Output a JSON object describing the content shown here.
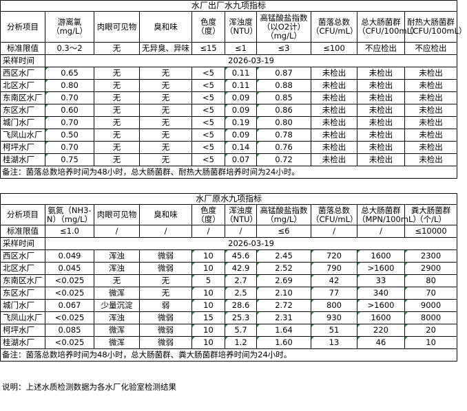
{
  "table1": {
    "title": "水厂出厂水九项指标",
    "headers": [
      "分析项目",
      "游离氯\n（mg/L）",
      "肉眼可见物",
      "臭和味",
      "色度\n（度）",
      "浑浊度\n（NTU）",
      "高锰酸盐指数\n（以O2计）\n（mg/L）",
      "菌落总数\n（CFU/mL）",
      "总大肠菌群\n（CFU/100mL）",
      "耐热大肠菌群\n（CFU/100mL）"
    ],
    "standard": [
      "标准限值",
      "0.3～2",
      "无",
      "无异臭、异味",
      "≤15",
      "≤1",
      "≤3",
      "≤100",
      "不应检出",
      "不应检出"
    ],
    "sample_label": "采样时间",
    "sample_date": "2026-03-19",
    "rows": [
      [
        "西区水厂",
        "0.65",
        "无",
        "无",
        "<5",
        "0.11",
        "0.87",
        "未检出",
        "未检出",
        "未检出"
      ],
      [
        "北区水厂",
        "0.80",
        "无",
        "无",
        "<5",
        "0.11",
        "0.88",
        "未检出",
        "未检出",
        "未检出"
      ],
      [
        "东南区水厂",
        "0.70",
        "无",
        "无",
        "<5",
        "0.09",
        "0.85",
        "未检出",
        "未检出",
        "未检出"
      ],
      [
        "东区水厂",
        "0.60",
        "无",
        "无",
        "<5",
        "0.09",
        "0.86",
        "未检出",
        "未检出",
        "未检出"
      ],
      [
        "城门水厂",
        "0.70",
        "无",
        "无",
        "<5",
        "0.19",
        "0.80",
        "未检出",
        "未检出",
        "未检出"
      ],
      [
        "飞凤山水厂",
        "0.50",
        "无",
        "无",
        "<5",
        "0.09",
        "0.78",
        "未检出",
        "未检出",
        "未检出"
      ],
      [
        "柯坪水厂",
        "0.70",
        "无",
        "无",
        "<5",
        "0.14",
        "0.76",
        "未检出",
        "未检出",
        "未检出"
      ],
      [
        "桂湖水厂",
        "0.75",
        "无",
        "无",
        "<5",
        "0.07",
        "0.72",
        "未检出",
        "未检出",
        "未检出"
      ]
    ],
    "note": "备注：菌落总数培养时间为48小时，总大肠菌群、耐热大肠菌群培养时间为24小时。"
  },
  "table2": {
    "title": "水厂原水九项指标",
    "headers": [
      "分析项目",
      "氨氮（NH3-\nN）（mg/L）",
      "肉眼可见物",
      "臭和味",
      "色度\n（度）",
      "浑浊度\n（NTU）",
      "高锰酸盐指数\n（mg/L）",
      "菌落总数\n（CFU/mL）",
      "总大肠菌群\n（MPN/100mL）",
      "粪大肠菌群\n（个/L）"
    ],
    "standard": [
      "标准限值",
      "≤1.0",
      "/",
      "/",
      "/",
      "/",
      "≤6",
      "/",
      "/",
      "≤10000"
    ],
    "sample_label": "采样时间",
    "sample_date": "2026-03-19",
    "rows": [
      [
        "西区水厂",
        "0.049",
        "浑浊",
        "微弱",
        "10",
        "45.6",
        "2.45",
        "720",
        "1600",
        "2300"
      ],
      [
        "北区水厂",
        "0.045",
        "浑浊",
        "微弱",
        "10",
        "42.9",
        "2.52",
        "790",
        ">1600",
        "2900"
      ],
      [
        "东南区水厂",
        "<0.025",
        "无",
        "无",
        "5",
        "2.7",
        "2.69",
        "42",
        "33",
        "80"
      ],
      [
        "东区水厂",
        "<0.025",
        "微浑",
        "无",
        "10",
        "2.5",
        "2.10",
        "77",
        "340",
        "70"
      ],
      [
        "城门水厂",
        "0.067",
        "少量沉淀",
        "弱",
        "10",
        "28.6",
        "2.72",
        "800",
        ">1600",
        "9000"
      ],
      [
        "飞凤山水厂",
        "<0.025",
        "浑浊",
        "微弱",
        "15",
        "25.3",
        "2.31",
        "930",
        "1600",
        "8000"
      ],
      [
        "柯坪水厂",
        "0.085",
        "微浑",
        "微弱",
        "10",
        "5.7",
        "1.64",
        "51",
        "220",
        "20"
      ],
      [
        "桂湖水厂",
        "<0.025",
        "微浑",
        "微弱",
        "10",
        "1.2",
        "1.60",
        "13",
        "46",
        "10"
      ]
    ],
    "note": "备注：菌落总数培养时间为48小时，总大肠菌群、粪大肠菌群培养时间为24小时。"
  },
  "explanation": "说明：上述水质检测数据为各水厂化验室检测结果"
}
